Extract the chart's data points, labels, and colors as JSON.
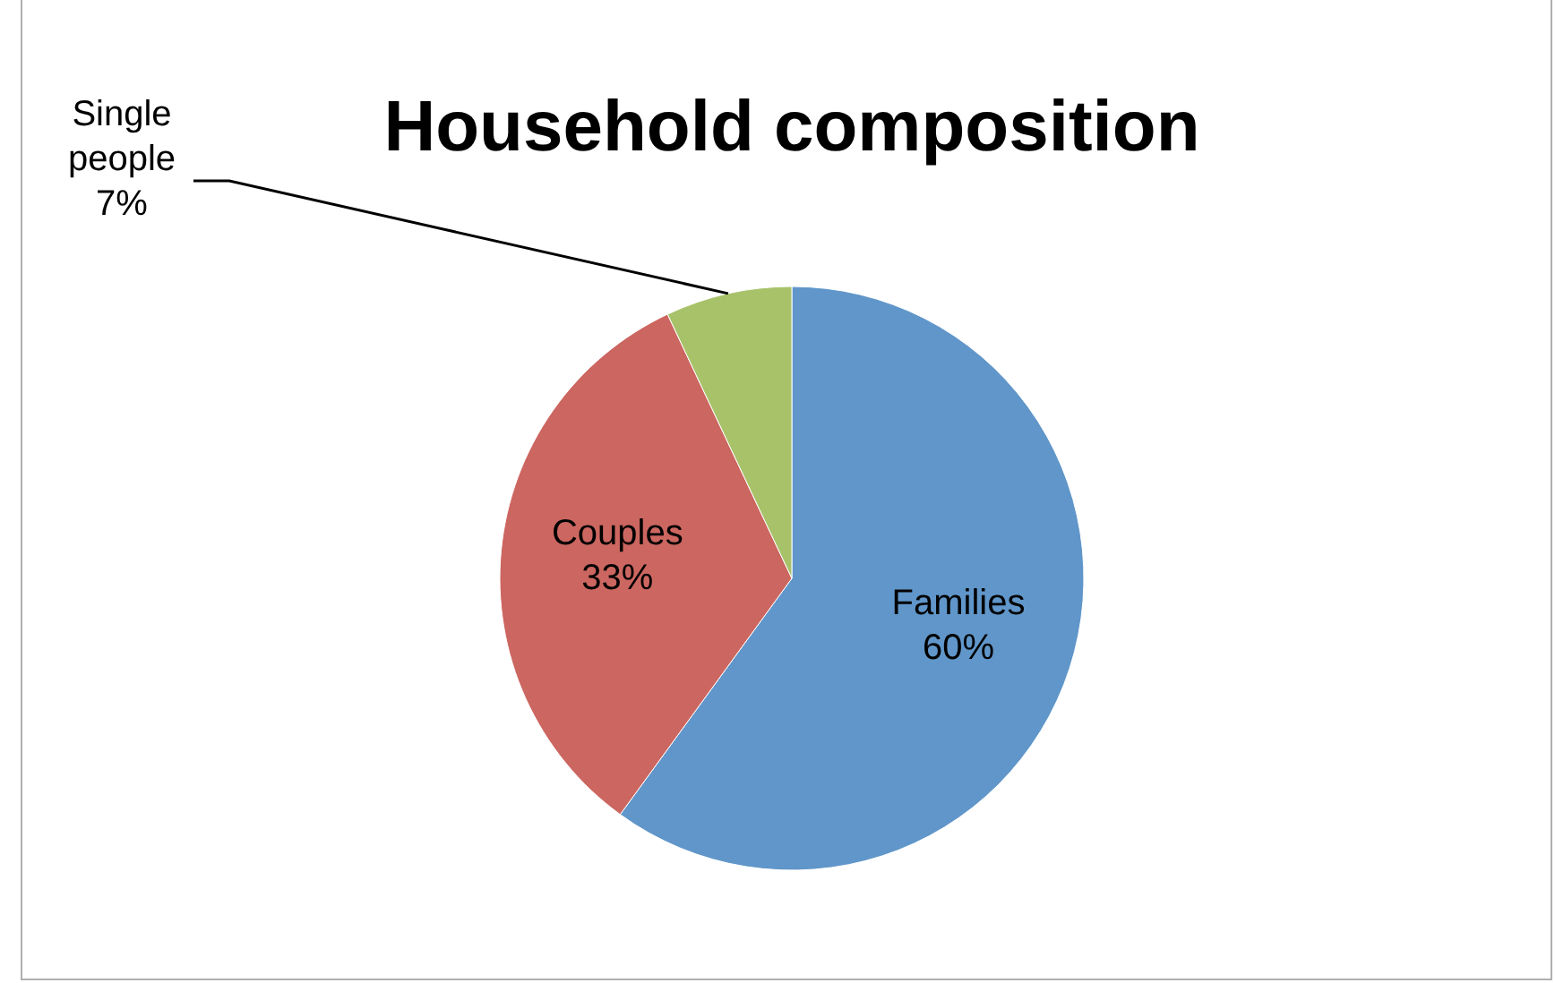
{
  "chart_data": {
    "type": "pie",
    "title": "Household composition",
    "categories": [
      "Families",
      "Couples",
      "Single people"
    ],
    "values": [
      60,
      33,
      7
    ],
    "colors": [
      "#6096c9",
      "#cc6660",
      "#a8c26a"
    ],
    "value_labels": [
      "60%",
      "33%",
      "7%"
    ],
    "legend": false
  }
}
